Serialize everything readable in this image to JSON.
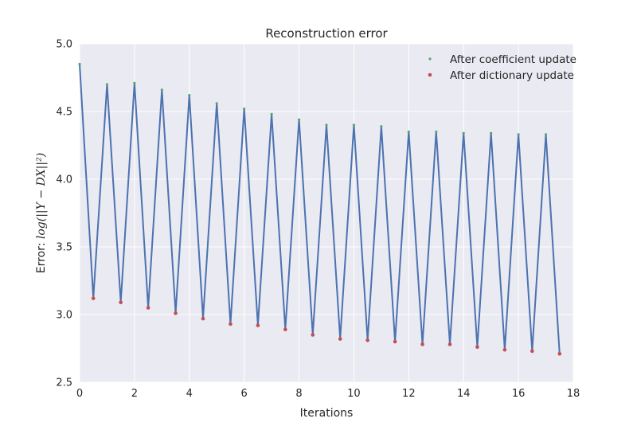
{
  "chart_data": {
    "type": "line",
    "title": "Reconstruction error",
    "xlabel": "Iterations",
    "ylabel": {
      "prefix": "Error: ",
      "math": "log(||Y − DX||²)"
    },
    "xlim": [
      0,
      18
    ],
    "ylim": [
      2.5,
      5.0
    ],
    "xticks": [
      "0",
      "2",
      "4",
      "6",
      "8",
      "10",
      "12",
      "14",
      "16",
      "18"
    ],
    "yticks": [
      "2.5",
      "3.0",
      "3.5",
      "4.0",
      "4.5",
      "5.0"
    ],
    "grid": true,
    "legend_position": "top-right",
    "colors": {
      "background": "#EAEAF2",
      "grid": "#FFFFFF",
      "line": "#4C72B0",
      "coefficient_marker": "#55A868",
      "dictionary_marker": "#C44E52"
    },
    "series": [
      {
        "name": "After coefficient update",
        "x": [
          0,
          1,
          2,
          3,
          4,
          5,
          6,
          7,
          8,
          9,
          10,
          11,
          12,
          13,
          14,
          15,
          16,
          17
        ],
        "values": [
          4.85,
          4.7,
          4.71,
          4.66,
          4.62,
          4.56,
          4.52,
          4.48,
          4.44,
          4.4,
          4.4,
          4.39,
          4.35,
          4.35,
          4.34,
          4.34,
          4.33,
          4.33
        ]
      },
      {
        "name": "After dictionary update",
        "x": [
          0.5,
          1.5,
          2.5,
          3.5,
          4.5,
          5.5,
          6.5,
          7.5,
          8.5,
          9.5,
          10.5,
          11.5,
          12.5,
          13.5,
          14.5,
          15.5,
          16.5,
          17.5
        ],
        "values": [
          3.12,
          3.09,
          3.05,
          3.01,
          2.97,
          2.93,
          2.92,
          2.89,
          2.85,
          2.82,
          2.81,
          2.8,
          2.78,
          2.78,
          2.76,
          2.74,
          2.73,
          2.71
        ]
      }
    ]
  }
}
